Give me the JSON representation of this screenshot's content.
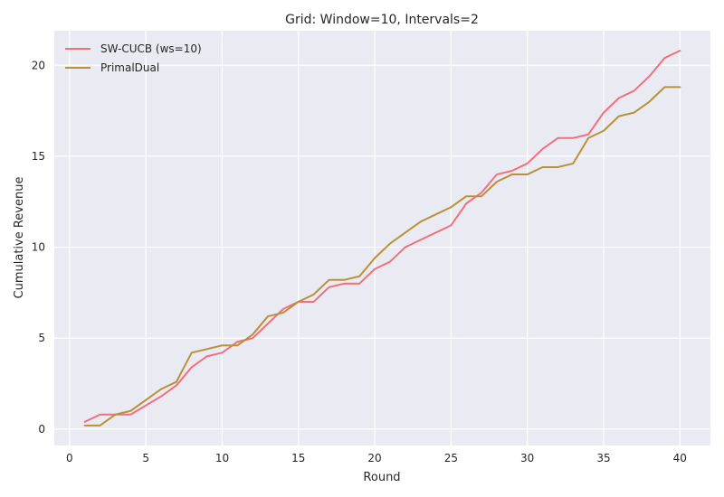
{
  "chart_data": {
    "type": "line",
    "title": "Grid: Window=10, Intervals=2",
    "xlabel": "Round",
    "ylabel": "Cumulative Revenue",
    "xlim": [
      -1,
      42
    ],
    "ylim": [
      -0.9,
      21.9
    ],
    "xticks": [
      0,
      5,
      10,
      15,
      20,
      25,
      30,
      35,
      40
    ],
    "yticks": [
      0,
      5,
      10,
      15,
      20
    ],
    "grid": true,
    "legend_position": "top-left",
    "background": "#eaeaf2",
    "x": [
      1,
      2,
      3,
      4,
      5,
      6,
      7,
      8,
      9,
      10,
      11,
      12,
      13,
      14,
      15,
      16,
      17,
      18,
      19,
      20,
      21,
      22,
      23,
      24,
      25,
      26,
      27,
      28,
      29,
      30,
      31,
      32,
      33,
      34,
      35,
      36,
      37,
      38,
      39,
      40
    ],
    "series": [
      {
        "name": "SW-CUCB (ws=10)",
        "color": "#f07080",
        "values": [
          0.4,
          0.8,
          0.8,
          0.8,
          1.3,
          1.8,
          2.4,
          3.4,
          4.0,
          4.2,
          4.8,
          5.0,
          5.8,
          6.6,
          7.0,
          7.0,
          7.8,
          8.0,
          8.0,
          8.8,
          9.2,
          10.0,
          10.4,
          10.8,
          11.2,
          12.4,
          13.0,
          14.0,
          14.2,
          14.6,
          15.4,
          16.0,
          16.0,
          16.2,
          17.4,
          18.2,
          18.6,
          19.4,
          20.4,
          20.8
        ]
      },
      {
        "name": "PrimalDual",
        "color": "#b99139",
        "values": [
          0.2,
          0.2,
          0.8,
          1.0,
          1.6,
          2.2,
          2.6,
          4.2,
          4.4,
          4.6,
          4.6,
          5.2,
          6.2,
          6.4,
          7.0,
          7.4,
          8.2,
          8.2,
          8.4,
          9.4,
          10.2,
          10.8,
          11.4,
          11.8,
          12.2,
          12.8,
          12.8,
          13.6,
          14.0,
          14.0,
          14.4,
          14.4,
          14.6,
          16.0,
          16.4,
          17.2,
          17.4,
          18.0,
          18.8,
          18.8
        ]
      }
    ]
  }
}
